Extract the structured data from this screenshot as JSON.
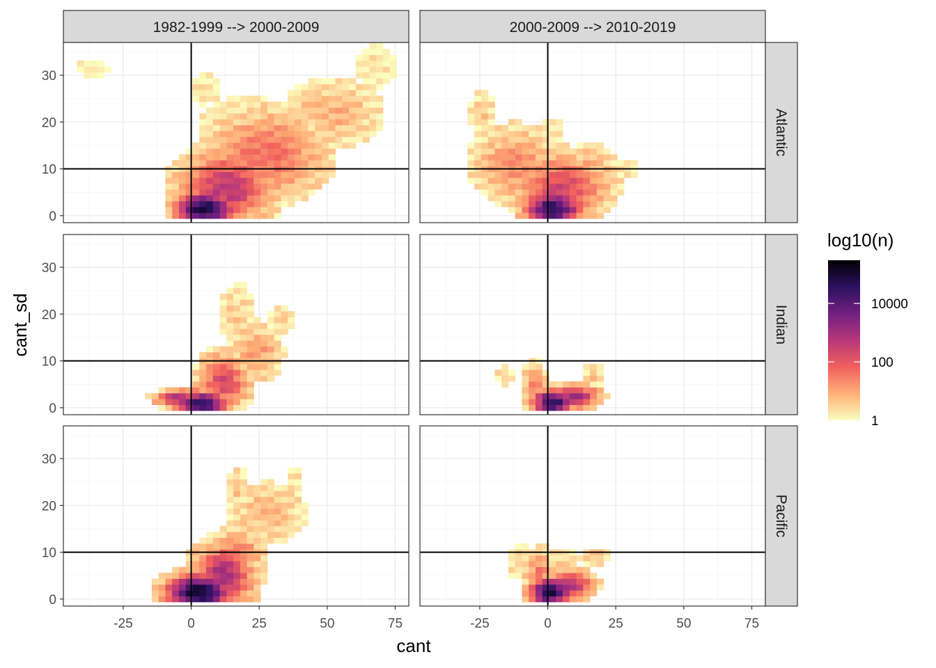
{
  "chart_data": {
    "type": "heatmap",
    "title": "",
    "xlabel": "cant",
    "ylabel": "cant_sd",
    "xlim": [
      -47,
      80
    ],
    "ylim": [
      -1.5,
      37
    ],
    "x_ticks": [
      -25,
      0,
      25,
      50,
      75
    ],
    "x_tick_labels": [
      "-25",
      "0",
      "25",
      "50",
      "75"
    ],
    "y_ticks": [
      0,
      10,
      20,
      30
    ],
    "y_tick_labels": [
      "0",
      "10",
      "20",
      "30"
    ],
    "ref_lines": {
      "x": 0,
      "y": 10
    },
    "bin_width": [
      2.5,
      1.25
    ],
    "col_facets": [
      "1982-1999 --> 2000-2009",
      "2000-2009 --> 2010-2019"
    ],
    "row_facets": [
      "Atlantic",
      "Indian",
      "Pacific"
    ],
    "legend": {
      "title": "log10(n)",
      "transform": "log10",
      "min": 1,
      "max": 300000,
      "breaks": [
        1,
        100,
        10000
      ],
      "break_labels": [
        "1",
        "100",
        "10000"
      ],
      "colors": [
        "#fcfdbf",
        "#feb078",
        "#f1605d",
        "#b73779",
        "#721f81",
        "#2c115f",
        "#000004"
      ]
    },
    "panels": [
      {
        "col": "1982-1999 --> 2000-2009",
        "row": "Atlantic",
        "blobs": [
          {
            "x": 5,
            "y": 1.5,
            "sx": 7,
            "sy": 2.5,
            "peak": 5.0,
            "cut": 0.4
          },
          {
            "x": 13,
            "y": 6,
            "sx": 11,
            "sy": 5,
            "peak": 2.7,
            "cut": 0.3
          },
          {
            "x": 28,
            "y": 13,
            "sx": 14,
            "sy": 6,
            "peak": 1.7,
            "cut": 0.3
          },
          {
            "x": 52,
            "y": 22,
            "sx": 11,
            "sy": 4.5,
            "peak": 0.9,
            "cut": 0.2
          },
          {
            "x": 20,
            "y": 19,
            "sx": 10,
            "sy": 4,
            "peak": 0.5,
            "cut": 0.12
          },
          {
            "x": -36,
            "y": 31.5,
            "sx": 3,
            "sy": 1.2,
            "peak": 0.25,
            "cut": 0.05
          },
          {
            "x": 68,
            "y": 32,
            "sx": 4,
            "sy": 2.5,
            "peak": 0.3,
            "cut": 0.05
          },
          {
            "x": 5,
            "y": 27,
            "sx": 4,
            "sy": 2.5,
            "peak": 0.25,
            "cut": 0.1
          }
        ]
      },
      {
        "col": "2000-2009 --> 2010-2019",
        "row": "Atlantic",
        "blobs": [
          {
            "x": 2,
            "y": 1.5,
            "sx": 7,
            "sy": 2.5,
            "peak": 4.6,
            "cut": 0.4
          },
          {
            "x": 5,
            "y": 6,
            "sx": 11,
            "sy": 4.5,
            "peak": 2.3,
            "cut": 0.3
          },
          {
            "x": -12,
            "y": 11,
            "sx": 10,
            "sy": 5,
            "peak": 1.3,
            "cut": 0.25
          },
          {
            "x": 15,
            "y": 9,
            "sx": 7,
            "sy": 4,
            "peak": 1.0,
            "cut": 0.25
          },
          {
            "x": -24,
            "y": 22,
            "sx": 3,
            "sy": 3,
            "peak": 0.6,
            "cut": 0.15
          },
          {
            "x": 2,
            "y": 16,
            "sx": 3,
            "sy": 3.5,
            "peak": 0.3,
            "cut": 0.1
          },
          {
            "x": 29,
            "y": 10,
            "sx": 3,
            "sy": 1.5,
            "peak": 0.3,
            "cut": 0.08
          }
        ]
      },
      {
        "col": "1982-1999 --> 2000-2009",
        "row": "Indian",
        "blobs": [
          {
            "x": 4,
            "y": 0.8,
            "sx": 6,
            "sy": 1.8,
            "peak": 4.8,
            "cut": 0.4
          },
          {
            "x": -4,
            "y": 2,
            "sx": 6,
            "sy": 1.2,
            "peak": 3.2,
            "cut": 0.4
          },
          {
            "x": 12,
            "y": 5.5,
            "sx": 6,
            "sy": 4,
            "peak": 2.2,
            "cut": 0.3
          },
          {
            "x": 24,
            "y": 12,
            "sx": 6,
            "sy": 4,
            "peak": 1.1,
            "cut": 0.25
          },
          {
            "x": 17,
            "y": 20,
            "sx": 4,
            "sy": 4,
            "peak": 0.6,
            "cut": 0.15
          },
          {
            "x": 33,
            "y": 19,
            "sx": 3,
            "sy": 2,
            "peak": 0.4,
            "cut": 0.1
          }
        ]
      },
      {
        "col": "2000-2009 --> 2010-2019",
        "row": "Indian",
        "blobs": [
          {
            "x": 2,
            "y": 1.2,
            "sx": 5,
            "sy": 1.8,
            "peak": 4.7,
            "cut": 0.4
          },
          {
            "x": 10,
            "y": 2.4,
            "sx": 6,
            "sy": 1.6,
            "peak": 3.2,
            "cut": 0.4
          },
          {
            "x": -5,
            "y": 5,
            "sx": 3,
            "sy": 3,
            "peak": 1.4,
            "cut": 0.25
          },
          {
            "x": -16,
            "y": 7,
            "sx": 2,
            "sy": 1.2,
            "peak": 0.5,
            "cut": 0.12
          },
          {
            "x": 17,
            "y": 7,
            "sx": 2,
            "sy": 1.5,
            "peak": 0.7,
            "cut": 0.12
          }
        ]
      },
      {
        "col": "1982-1999 --> 2000-2009",
        "row": "Pacific",
        "blobs": [
          {
            "x": 3,
            "y": 1.5,
            "sx": 8,
            "sy": 2.5,
            "peak": 5.2,
            "cut": 0.4
          },
          {
            "x": 12,
            "y": 5,
            "sx": 7,
            "sy": 4.5,
            "peak": 3.0,
            "cut": 0.3
          },
          {
            "x": 18,
            "y": 10,
            "sx": 6,
            "sy": 3.5,
            "peak": 1.3,
            "cut": 0.25
          },
          {
            "x": 28,
            "y": 18.5,
            "sx": 9,
            "sy": 4,
            "peak": 0.8,
            "cut": 0.2
          },
          {
            "x": 17,
            "y": 24,
            "sx": 2,
            "sy": 2.5,
            "peak": 0.7,
            "cut": 0.12
          },
          {
            "x": 38,
            "y": 25.5,
            "sx": 2,
            "sy": 1.5,
            "peak": 0.3,
            "cut": 0.08
          }
        ]
      },
      {
        "col": "2000-2009 --> 2010-2019",
        "row": "Pacific",
        "blobs": [
          {
            "x": 1,
            "y": 1.5,
            "sx": 5,
            "sy": 2,
            "peak": 5.0,
            "cut": 0.4
          },
          {
            "x": 8,
            "y": 3,
            "sx": 6,
            "sy": 2,
            "peak": 3.0,
            "cut": 0.4
          },
          {
            "x": -3,
            "y": 6,
            "sx": 4,
            "sy": 3,
            "peak": 1.4,
            "cut": 0.25
          },
          {
            "x": -10,
            "y": 8,
            "sx": 3,
            "sy": 2.5,
            "peak": 0.5,
            "cut": 0.12
          },
          {
            "x": 17,
            "y": 9,
            "sx": 3,
            "sy": 1.2,
            "peak": 0.8,
            "cut": 0.15
          },
          {
            "x": 6,
            "y": 8,
            "sx": 3,
            "sy": 1.5,
            "peak": 0.7,
            "cut": 0.15
          }
        ]
      }
    ]
  }
}
